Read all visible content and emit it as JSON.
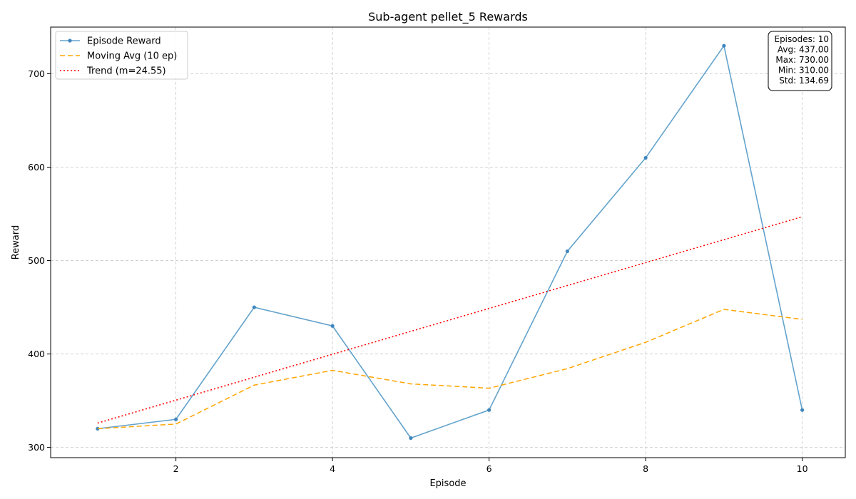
{
  "chart_data": {
    "type": "line",
    "title": "Sub-agent pellet_5 Rewards",
    "xlabel": "Episode",
    "ylabel": "Reward",
    "x": [
      1,
      2,
      3,
      4,
      5,
      6,
      7,
      8,
      9,
      10
    ],
    "xlim": [
      0.4,
      10.55
    ],
    "ylim": [
      289,
      750
    ],
    "xticks": [
      2,
      4,
      6,
      8,
      10
    ],
    "yticks": [
      300,
      400,
      500,
      600,
      700
    ],
    "grid": true,
    "legend_position": "top-left",
    "series": [
      {
        "name": "Episode Reward",
        "style": "solid-marker",
        "color": "#5b9ec9",
        "values": [
          320,
          330,
          450,
          430,
          310,
          340,
          510,
          610,
          730,
          340
        ]
      },
      {
        "name": "Moving Avg (10 ep)",
        "style": "dashed",
        "color": "#ffa500",
        "values": [
          320,
          325,
          366.67,
          382.5,
          368,
          363.33,
          384.29,
          412.5,
          447.78,
          437
        ]
      },
      {
        "name": "Trend (m=24.55)",
        "style": "dotted",
        "color": "#ff0000",
        "values": [
          326.0,
          350.55,
          375.1,
          399.65,
          424.2,
          448.75,
          473.3,
          497.85,
          522.4,
          546.95
        ]
      }
    ],
    "stats_box": {
      "position": "top-right",
      "lines": [
        "Episodes: 10",
        "Avg: 437.00",
        "Max: 730.00",
        "Min: 310.00",
        "Std: 134.69"
      ]
    }
  }
}
